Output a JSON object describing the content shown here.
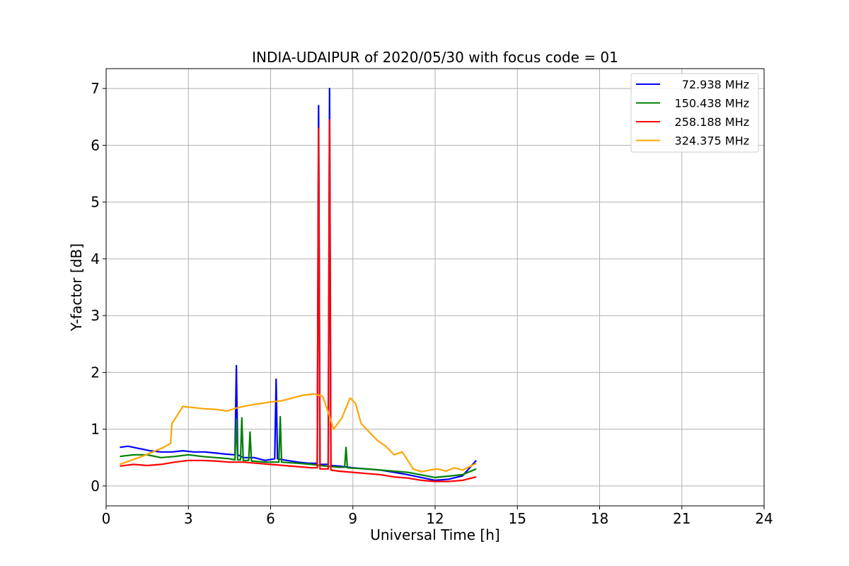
{
  "chart_data": {
    "type": "line",
    "title": "INDIA-UDAIPUR of 2020/05/30 with focus code = 01",
    "xlabel": "Universal Time [h]",
    "ylabel": "Y-factor [dB]",
    "xlim": [
      0,
      24
    ],
    "ylim": [
      -0.35,
      7.35
    ],
    "xticks": [
      0,
      3,
      6,
      9,
      12,
      15,
      18,
      21,
      24
    ],
    "yticks": [
      0,
      1,
      2,
      3,
      4,
      5,
      6,
      7
    ],
    "grid": true,
    "legend_position": "top-right",
    "series": [
      {
        "name": "72.938 MHz",
        "color": "#0000ff",
        "x": [
          0.5,
          0.8,
          1.2,
          1.6,
          2.0,
          2.4,
          2.8,
          3.2,
          3.6,
          4.0,
          4.4,
          4.7,
          4.75,
          4.8,
          5.0,
          5.4,
          5.8,
          6.15,
          6.2,
          6.25,
          6.6,
          7.0,
          7.4,
          7.7,
          7.75,
          7.8,
          8.0,
          8.1,
          8.15,
          8.2,
          8.5,
          9.0,
          9.5,
          10.0,
          10.5,
          11.0,
          11.5,
          12.0,
          12.5,
          13.0,
          13.5
        ],
        "y": [
          0.68,
          0.7,
          0.66,
          0.62,
          0.6,
          0.6,
          0.62,
          0.6,
          0.6,
          0.58,
          0.56,
          0.55,
          2.12,
          0.55,
          0.5,
          0.5,
          0.45,
          0.48,
          1.88,
          0.48,
          0.45,
          0.42,
          0.4,
          0.4,
          6.7,
          0.38,
          0.38,
          0.38,
          7.0,
          0.36,
          0.35,
          0.32,
          0.3,
          0.28,
          0.24,
          0.2,
          0.15,
          0.1,
          0.12,
          0.18,
          0.45
        ]
      },
      {
        "name": "150.438 MHz",
        "color": "#008000",
        "x": [
          0.5,
          1.0,
          1.5,
          2.0,
          2.5,
          3.0,
          3.5,
          4.0,
          4.5,
          4.7,
          4.75,
          4.8,
          4.9,
          4.95,
          5.0,
          5.2,
          5.25,
          5.3,
          5.8,
          6.2,
          6.3,
          6.35,
          6.4,
          7.0,
          7.5,
          8.0,
          8.5,
          8.7,
          8.75,
          8.8,
          9.5,
          10.0,
          11.0,
          12.0,
          13.0,
          13.5
        ],
        "y": [
          0.52,
          0.55,
          0.55,
          0.5,
          0.52,
          0.55,
          0.52,
          0.5,
          0.48,
          0.46,
          1.18,
          0.46,
          0.46,
          1.2,
          0.45,
          0.45,
          0.95,
          0.44,
          0.42,
          0.42,
          0.42,
          1.22,
          0.42,
          0.4,
          0.38,
          0.35,
          0.33,
          0.33,
          0.68,
          0.32,
          0.3,
          0.28,
          0.24,
          0.15,
          0.2,
          0.3
        ]
      },
      {
        "name": "258.188 MHz",
        "color": "#ff0000",
        "x": [
          0.5,
          1.0,
          1.5,
          2.0,
          2.5,
          3.0,
          3.5,
          4.0,
          4.5,
          5.0,
          5.5,
          6.0,
          6.5,
          7.0,
          7.5,
          7.7,
          7.75,
          7.8,
          8.0,
          8.1,
          8.15,
          8.2,
          8.5,
          9.0,
          9.5,
          10.0,
          10.5,
          11.0,
          11.5,
          12.0,
          12.5,
          13.0,
          13.5
        ],
        "y": [
          0.35,
          0.38,
          0.36,
          0.38,
          0.42,
          0.45,
          0.45,
          0.44,
          0.42,
          0.42,
          0.4,
          0.38,
          0.36,
          0.34,
          0.32,
          0.32,
          6.3,
          0.3,
          0.3,
          0.3,
          6.45,
          0.28,
          0.26,
          0.24,
          0.22,
          0.2,
          0.16,
          0.14,
          0.1,
          0.08,
          0.08,
          0.1,
          0.16
        ]
      },
      {
        "name": "324.375 MHz",
        "color": "#ffa500",
        "x": [
          0.5,
          0.9,
          1.3,
          1.7,
          2.1,
          2.35,
          2.4,
          2.6,
          2.8,
          3.2,
          3.6,
          4.0,
          4.4,
          4.8,
          5.2,
          5.6,
          6.0,
          6.4,
          6.8,
          7.2,
          7.6,
          7.9,
          8.1,
          8.3,
          8.6,
          8.9,
          9.1,
          9.3,
          9.6,
          9.9,
          10.2,
          10.5,
          10.8,
          11.0,
          11.2,
          11.5,
          11.8,
          12.1,
          12.4,
          12.7,
          13.0,
          13.3,
          13.5
        ],
        "y": [
          0.38,
          0.45,
          0.52,
          0.6,
          0.68,
          0.75,
          1.1,
          1.25,
          1.4,
          1.38,
          1.36,
          1.35,
          1.32,
          1.38,
          1.42,
          1.45,
          1.48,
          1.5,
          1.55,
          1.6,
          1.62,
          1.58,
          1.3,
          1.0,
          1.2,
          1.55,
          1.45,
          1.1,
          0.95,
          0.8,
          0.7,
          0.55,
          0.6,
          0.45,
          0.3,
          0.25,
          0.28,
          0.3,
          0.26,
          0.32,
          0.28,
          0.35,
          0.4
        ]
      }
    ]
  }
}
